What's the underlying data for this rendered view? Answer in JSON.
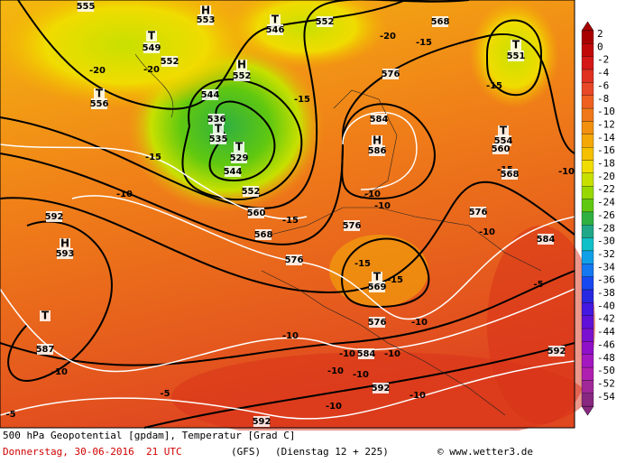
{
  "footer": {
    "line1": "500 hPa Geopotential [gpdam], Temperatur [Grad C]",
    "date": "Donnerstag, 30-06-2016  21 UTC",
    "model": "(GFS)",
    "run": "(Dienstag 12 + 225)",
    "credit": "© www.wetter3.de"
  },
  "legend": {
    "labels": [
      "2",
      "0",
      "-2",
      "-4",
      "-6",
      "-8",
      "-10",
      "-12",
      "-14",
      "-16",
      "-18",
      "-20",
      "-22",
      "-24",
      "-26",
      "-28",
      "-30",
      "-32",
      "-34",
      "-36",
      "-38",
      "-40",
      "-42",
      "-44",
      "-46",
      "-48",
      "-50",
      "-52",
      "-54"
    ],
    "colors": [
      "#a80000",
      "#c00808",
      "#d41818",
      "#e03020",
      "#e84828",
      "#ee6020",
      "#f07818",
      "#f29010",
      "#f4a808",
      "#f4c000",
      "#f0dc00",
      "#c8e000",
      "#98d800",
      "#60c810",
      "#30b040",
      "#20a888",
      "#10c0c8",
      "#10a0e8",
      "#1478f0",
      "#1848f0",
      "#2828e0",
      "#4418e0",
      "#6010d8",
      "#7c10d0",
      "#9010c8",
      "#a418c0",
      "#b020b0",
      "#a02898",
      "#882880"
    ]
  },
  "map": {
    "labels": [
      "555",
      "H",
      "553",
      "T",
      "549",
      "T",
      "546",
      "552",
      "H",
      "552",
      "552",
      "T",
      "556",
      "-20",
      "-20",
      "544",
      "536",
      "T",
      "535",
      "T",
      "529",
      "544",
      "552",
      "560",
      "568",
      "-15",
      "-15",
      "-15",
      "568",
      "576",
      "584",
      "H",
      "586",
      "-10",
      "576",
      "T",
      "569",
      "-15",
      "-15",
      "576",
      "576",
      "576",
      "584",
      "T",
      "551",
      "T",
      "554",
      "-15",
      "-15",
      "568",
      "560",
      "-10",
      "592",
      "H",
      "593",
      "T",
      "587",
      "-10",
      "-10",
      "-10",
      "584",
      "-10",
      "-10",
      "-10",
      "-5",
      "-10",
      "-10",
      "592",
      "-10",
      "-10",
      "-5",
      "-5",
      "592",
      "592",
      "-10",
      "-20",
      "-15",
      "-10"
    ]
  }
}
